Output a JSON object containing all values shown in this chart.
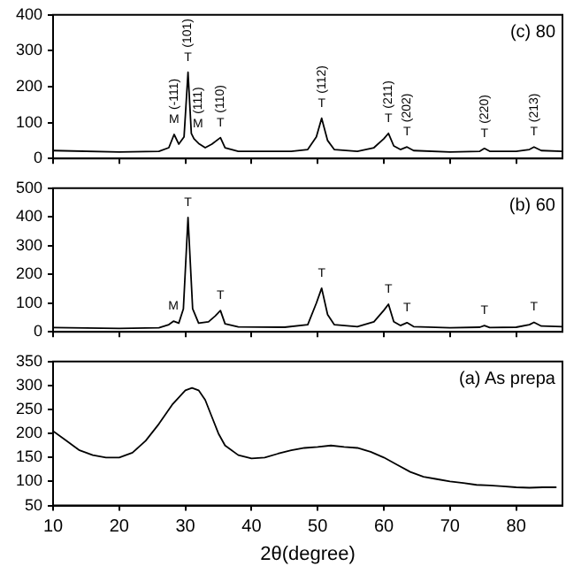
{
  "chart_data": [
    {
      "type": "line",
      "color": "#000000",
      "marker": "none",
      "tick_labels": "y",
      "xlim": [
        10,
        87
      ],
      "xticks": [
        10,
        20,
        30,
        40,
        50,
        60,
        70,
        80
      ],
      "ylim": [
        0,
        400
      ],
      "yticks": [
        0,
        100,
        200,
        300,
        400
      ],
      "x": [
        10,
        20,
        26,
        27.5,
        28.3,
        29,
        29.8,
        30.4,
        30.9,
        31.3,
        32,
        33,
        34,
        35.3,
        36,
        38,
        42,
        46,
        48.5,
        49.8,
        50.6,
        51.5,
        52.5,
        56,
        58.5,
        60,
        60.7,
        61.5,
        62.5,
        63.5,
        64.5,
        70,
        74.5,
        75.2,
        76,
        80,
        82,
        82.7,
        83.8,
        87
      ],
      "values": [
        22,
        18,
        20,
        30,
        67,
        40,
        60,
        240,
        70,
        55,
        42,
        30,
        40,
        58,
        30,
        20,
        20,
        20,
        25,
        60,
        112,
        50,
        25,
        20,
        30,
        55,
        70,
        35,
        25,
        32,
        22,
        18,
        20,
        28,
        20,
        20,
        25,
        32,
        22,
        20
      ],
      "annotations": [
        "(c) 80",
        {
          "text": "M",
          "x": 28.3,
          "y": 67
        },
        {
          "text": "(-111)",
          "x": 28.3,
          "y": 67
        },
        {
          "text": "T",
          "x": 30.4,
          "y": 240
        },
        {
          "text": "(101)",
          "x": 30.4,
          "y": 240
        },
        {
          "text": "M",
          "x": 31.9,
          "y": 55
        },
        {
          "text": "(111)",
          "x": 31.9,
          "y": 55
        },
        {
          "text": "T",
          "x": 35.3,
          "y": 58
        },
        {
          "text": "(110)",
          "x": 35.3,
          "y": 58
        },
        {
          "text": "T",
          "x": 50.6,
          "y": 112
        },
        {
          "text": "(112)",
          "x": 50.6,
          "y": 112
        },
        {
          "text": "T",
          "x": 60.7,
          "y": 70
        },
        {
          "text": "(211)",
          "x": 60.7,
          "y": 70
        },
        {
          "text": "T",
          "x": 63.5,
          "y": 32
        },
        {
          "text": "(202)",
          "x": 63.5,
          "y": 32
        },
        {
          "text": "T",
          "x": 75.2,
          "y": 28
        },
        {
          "text": "(220)",
          "x": 75.2,
          "y": 28
        },
        {
          "text": "T",
          "x": 82.7,
          "y": 32
        },
        {
          "text": "(213)",
          "x": 82.7,
          "y": 32
        }
      ]
    },
    {
      "type": "line",
      "color": "#000000",
      "marker": "none",
      "tick_labels": "y",
      "xlim": [
        10,
        87
      ],
      "xticks": [
        10,
        20,
        30,
        40,
        50,
        60,
        70,
        80
      ],
      "ylim": [
        0,
        500
      ],
      "yticks": [
        0,
        100,
        200,
        300,
        400,
        500
      ],
      "x": [
        10,
        20,
        26,
        27.5,
        28.2,
        29,
        29.7,
        30.4,
        31.1,
        32,
        33.5,
        34.5,
        35.3,
        36,
        38,
        45,
        48.5,
        49.8,
        50.6,
        51.5,
        52.5,
        56,
        58.5,
        60,
        60.7,
        61.5,
        62.5,
        63.5,
        64.5,
        70,
        74.5,
        75.2,
        76,
        80,
        82,
        82.7,
        83.8,
        87
      ],
      "values": [
        15,
        12,
        14,
        25,
        37,
        30,
        80,
        398,
        80,
        30,
        35,
        55,
        74,
        28,
        17,
        16,
        25,
        100,
        152,
        60,
        25,
        18,
        35,
        75,
        96,
        35,
        22,
        32,
        18,
        14,
        16,
        22,
        15,
        16,
        25,
        33,
        20,
        18
      ],
      "annotations": [
        "(b) 60",
        {
          "text": "M",
          "x": 28.2,
          "y": 37
        },
        {
          "text": "T",
          "x": 30.4,
          "y": 398
        },
        {
          "text": "T",
          "x": 35.3,
          "y": 74
        },
        {
          "text": "T",
          "x": 50.6,
          "y": 152
        },
        {
          "text": "T",
          "x": 60.7,
          "y": 96
        },
        {
          "text": "T",
          "x": 63.5,
          "y": 32
        },
        {
          "text": "T",
          "x": 75.2,
          "y": 22
        },
        {
          "text": "T",
          "x": 82.7,
          "y": 33
        }
      ]
    },
    {
      "type": "line",
      "color": "#000000",
      "marker": "none",
      "xlabel": "2θ(degree)",
      "xlim": [
        10,
        87
      ],
      "xticks": [
        10,
        20,
        30,
        40,
        50,
        60,
        70,
        80
      ],
      "ylim": [
        50,
        350
      ],
      "yticks": [
        50,
        100,
        150,
        200,
        250,
        300,
        350
      ],
      "x": [
        10,
        12,
        14,
        16,
        18,
        20,
        22,
        24,
        26,
        28,
        30,
        31,
        32,
        33,
        34,
        35,
        36,
        38,
        40,
        42,
        44,
        46,
        48,
        50,
        52,
        54,
        56,
        58,
        60,
        62,
        64,
        66,
        68,
        70,
        72,
        74,
        76,
        78,
        80,
        82,
        84,
        86
      ],
      "values": [
        205,
        185,
        165,
        155,
        150,
        150,
        160,
        185,
        220,
        260,
        290,
        295,
        290,
        270,
        235,
        200,
        175,
        155,
        148,
        150,
        158,
        165,
        170,
        172,
        175,
        172,
        170,
        162,
        150,
        135,
        120,
        110,
        105,
        100,
        97,
        93,
        92,
        90,
        88,
        87,
        88,
        88
      ],
      "annotations": [
        "(a) As prepa"
      ]
    }
  ]
}
